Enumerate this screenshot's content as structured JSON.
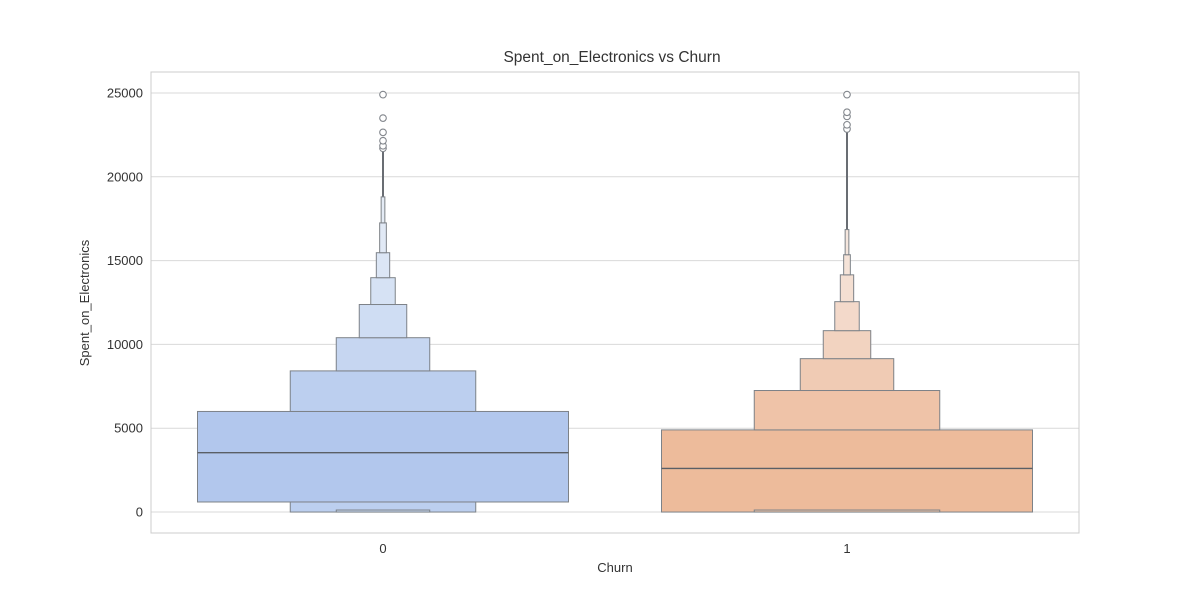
{
  "chart_data": {
    "type": "boxen",
    "title": "Spent_on_Electronics vs Churn",
    "xlabel": "Churn",
    "ylabel": "Spent_on_Electronics",
    "categories": [
      "0",
      "1"
    ],
    "yticks": [
      0,
      5000,
      10000,
      15000,
      20000,
      25000
    ],
    "ytick_labels": [
      "0",
      "5000",
      "10000",
      "15000",
      "20000",
      "25000"
    ],
    "ylim": [
      -1250,
      26250
    ],
    "grid": "horizontal-only",
    "legend": "none",
    "level_width_fractions": [
      1.0,
      0.5,
      0.252,
      0.128,
      0.066,
      0.036,
      0.018,
      0.01
    ],
    "groups": [
      {
        "category": "0",
        "median": 3540,
        "level_colors": [
          "#b2c7ed",
          "#bccfef",
          "#c6d6f1",
          "#cfddf3",
          "#d6e2f4",
          "#dce6f5",
          "#e1e9f5",
          "#e4ebf5"
        ],
        "boxes": [
          {
            "level": 0,
            "lo": 600,
            "hi": 6000
          },
          {
            "level": 1,
            "lo": 0,
            "hi": 600
          },
          {
            "level": 1,
            "lo": 6000,
            "hi": 8420
          },
          {
            "level": 2,
            "lo": 8420,
            "hi": 10400
          },
          {
            "level": 2,
            "lo": 0,
            "hi": 120
          },
          {
            "level": 3,
            "lo": 10400,
            "hi": 12380
          },
          {
            "level": 4,
            "lo": 12380,
            "hi": 13980
          },
          {
            "level": 5,
            "lo": 13980,
            "hi": 15470
          },
          {
            "level": 6,
            "lo": 15470,
            "hi": 17250
          },
          {
            "level": 7,
            "lo": 17250,
            "hi": 18800
          }
        ],
        "stem": {
          "lo": 18800,
          "hi": 21700
        },
        "outliers": [
          21700,
          21850,
          22150,
          22650,
          23500,
          24900
        ]
      },
      {
        "category": "1",
        "median": 2600,
        "level_colors": [
          "#edbb9b",
          "#efc3a8",
          "#f0cbb4",
          "#f2d3c0",
          "#f3d9ca",
          "#f4dfd2",
          "#f5e3d8",
          "#f5e6dd"
        ],
        "boxes": [
          {
            "level": 0,
            "lo": 0,
            "hi": 4900
          },
          {
            "level": 1,
            "lo": 4900,
            "hi": 7250
          },
          {
            "level": 1,
            "lo": 0,
            "hi": 120
          },
          {
            "level": 2,
            "lo": 7250,
            "hi": 9150
          },
          {
            "level": 3,
            "lo": 9150,
            "hi": 10820
          },
          {
            "level": 4,
            "lo": 10820,
            "hi": 12550
          },
          {
            "level": 5,
            "lo": 12550,
            "hi": 14150
          },
          {
            "level": 6,
            "lo": 14150,
            "hi": 15350
          },
          {
            "level": 7,
            "lo": 15350,
            "hi": 16850
          }
        ],
        "stem": {
          "lo": 16850,
          "hi": 22700
        },
        "outliers": [
          22850,
          23100,
          23600,
          23850,
          24900
        ]
      }
    ],
    "style": {
      "background": "#ffffff",
      "grid_color": "#d9d9d9",
      "spine_color": "#cccccc",
      "box_edge_color": "#7d8288",
      "median_color": "#5a5f66",
      "stem_color": "#696d73",
      "outlier_stroke": "#83878d",
      "text_color": "#333333"
    }
  }
}
